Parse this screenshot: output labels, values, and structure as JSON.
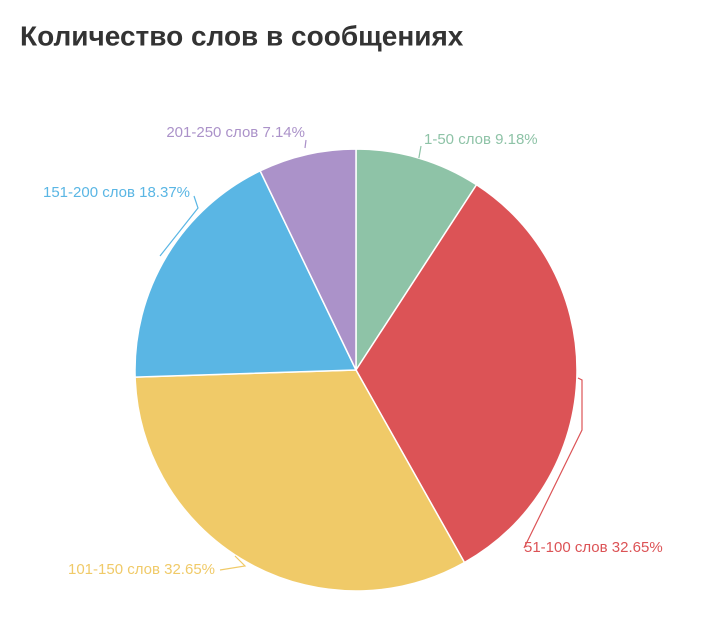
{
  "chart_data": {
    "type": "pie",
    "title": "Количество слов в сообщениях",
    "categories": [
      "1-50 слов",
      "51-100 слов",
      "101-150 слов",
      "151-200 слов",
      "201-250 слов"
    ],
    "values": [
      9.18,
      32.65,
      32.65,
      18.37,
      7.14
    ],
    "value_labels": [
      "9.18%",
      "32.65%",
      "32.65%",
      "18.37%",
      "7.14%"
    ],
    "colors": [
      "#8ec3a7",
      "#dc5356",
      "#f0ca68",
      "#5ab6e4",
      "#ab92c9"
    ]
  }
}
